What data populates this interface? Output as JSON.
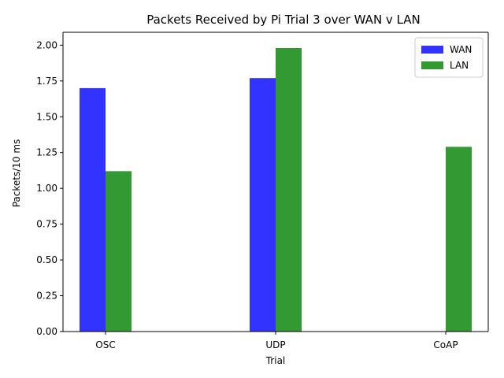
{
  "chart_data": {
    "type": "bar",
    "title": "Packets Received by Pi Trial 3 over WAN v LAN",
    "xlabel": "Trial",
    "ylabel": "Packets/10 ms",
    "categories": [
      "OSC",
      "UDP",
      "CoAP"
    ],
    "series": [
      {
        "name": "WAN",
        "color": "#3333ff",
        "values": [
          1.7,
          1.77,
          0
        ]
      },
      {
        "name": "LAN",
        "color": "#339933",
        "values": [
          1.12,
          1.98,
          1.29
        ]
      }
    ],
    "ylim": [
      0,
      2.09
    ],
    "yticks": [
      "0.00",
      "0.25",
      "0.50",
      "0.75",
      "1.00",
      "1.25",
      "1.50",
      "1.75",
      "2.00"
    ],
    "grid": false,
    "legend_position": "top-right"
  }
}
